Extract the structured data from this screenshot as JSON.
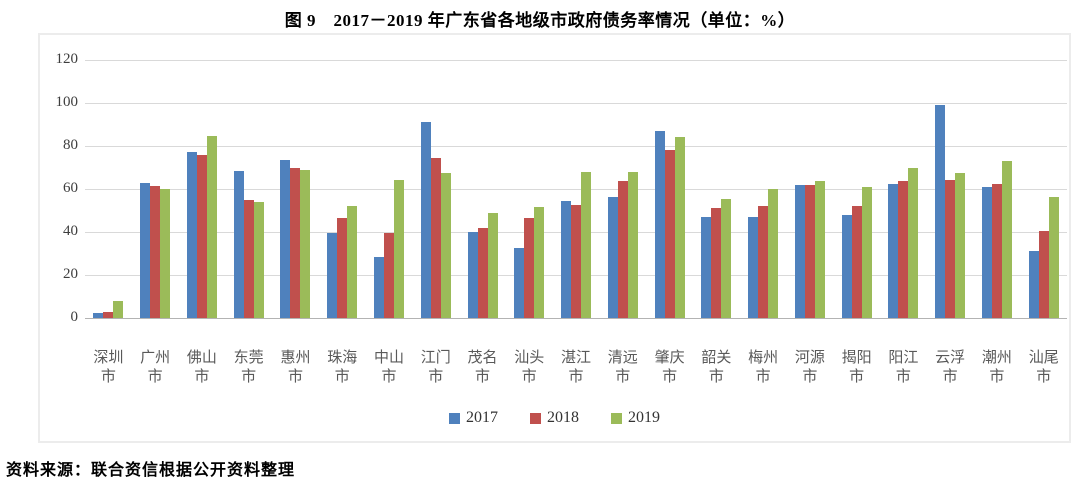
{
  "page": {
    "title": "图 9　2017－2019 年广东省各地级市政府债务率情况（单位：%）",
    "source_note": "资料来源：联合资信根据公开资料整理"
  },
  "chart_data": {
    "type": "bar",
    "title": "图 9　2017－2019 年广东省各地级市政府债务率情况",
    "unit": "%",
    "categories": [
      "深圳市",
      "广州市",
      "佛山市",
      "东莞市",
      "惠州市",
      "珠海市",
      "中山市",
      "江门市",
      "茂名市",
      "汕头市",
      "湛江市",
      "清远市",
      "肇庆市",
      "韶关市",
      "梅州市",
      "河源市",
      "揭阳市",
      "阳江市",
      "云浮市",
      "潮州市",
      "汕尾市"
    ],
    "series": [
      {
        "name": "2017",
        "color": "#4F81BD",
        "values": [
          2.3,
          63,
          77,
          68.5,
          73.5,
          39.5,
          28.5,
          91,
          40,
          32.5,
          54.5,
          56.5,
          87,
          47,
          47,
          62,
          48,
          62.5,
          99,
          61,
          31
        ]
      },
      {
        "name": "2018",
        "color": "#C0504D",
        "values": [
          3,
          61.5,
          76,
          55,
          70,
          46.5,
          39.5,
          74.5,
          42,
          46.5,
          52.5,
          63.5,
          78,
          51,
          52,
          62,
          52,
          63.5,
          64,
          62.5,
          40.5
        ]
      },
      {
        "name": "2019",
        "color": "#9BBB59",
        "values": [
          8,
          60,
          84.5,
          54,
          69,
          52,
          64,
          67.5,
          49,
          51.5,
          68,
          68,
          84,
          55.5,
          60,
          63.5,
          61,
          70,
          67.5,
          73,
          56.5
        ]
      }
    ],
    "ylim": [
      0,
      120
    ],
    "yticks": [
      0,
      20,
      40,
      60,
      80,
      100,
      120
    ],
    "grid": true,
    "legend_position": "bottom",
    "gridline_color": "#d9d9d9",
    "axis_label_color": "#595959"
  }
}
